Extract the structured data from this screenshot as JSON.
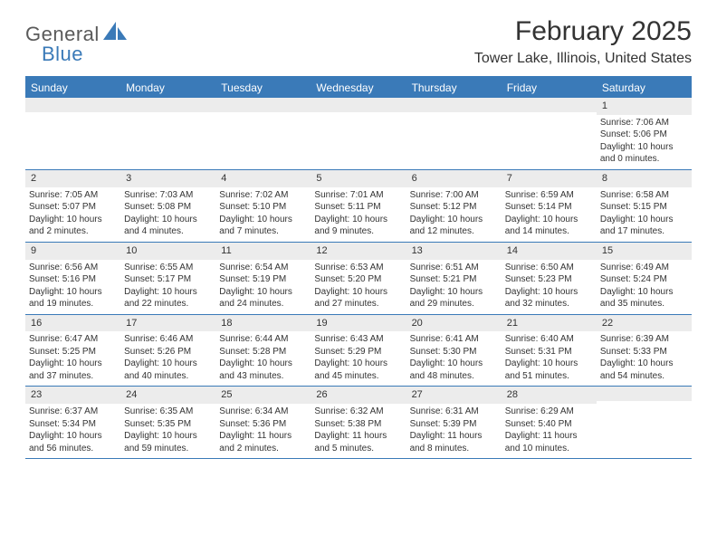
{
  "brand": {
    "word1": "General",
    "word2": "Blue",
    "accent_color": "#3a7ab8",
    "text_color": "#5a5a5a"
  },
  "title": "February 2025",
  "location": "Tower Lake, Illinois, United States",
  "header_bg": "#3a7ab8",
  "daynum_bg": "#ececec",
  "weekdays": [
    "Sunday",
    "Monday",
    "Tuesday",
    "Wednesday",
    "Thursday",
    "Friday",
    "Saturday"
  ],
  "weeks": [
    [
      {
        "n": "",
        "lines": []
      },
      {
        "n": "",
        "lines": []
      },
      {
        "n": "",
        "lines": []
      },
      {
        "n": "",
        "lines": []
      },
      {
        "n": "",
        "lines": []
      },
      {
        "n": "",
        "lines": []
      },
      {
        "n": "1",
        "lines": [
          "Sunrise: 7:06 AM",
          "Sunset: 5:06 PM",
          "Daylight: 10 hours and 0 minutes."
        ]
      }
    ],
    [
      {
        "n": "2",
        "lines": [
          "Sunrise: 7:05 AM",
          "Sunset: 5:07 PM",
          "Daylight: 10 hours and 2 minutes."
        ]
      },
      {
        "n": "3",
        "lines": [
          "Sunrise: 7:03 AM",
          "Sunset: 5:08 PM",
          "Daylight: 10 hours and 4 minutes."
        ]
      },
      {
        "n": "4",
        "lines": [
          "Sunrise: 7:02 AM",
          "Sunset: 5:10 PM",
          "Daylight: 10 hours and 7 minutes."
        ]
      },
      {
        "n": "5",
        "lines": [
          "Sunrise: 7:01 AM",
          "Sunset: 5:11 PM",
          "Daylight: 10 hours and 9 minutes."
        ]
      },
      {
        "n": "6",
        "lines": [
          "Sunrise: 7:00 AM",
          "Sunset: 5:12 PM",
          "Daylight: 10 hours and 12 minutes."
        ]
      },
      {
        "n": "7",
        "lines": [
          "Sunrise: 6:59 AM",
          "Sunset: 5:14 PM",
          "Daylight: 10 hours and 14 minutes."
        ]
      },
      {
        "n": "8",
        "lines": [
          "Sunrise: 6:58 AM",
          "Sunset: 5:15 PM",
          "Daylight: 10 hours and 17 minutes."
        ]
      }
    ],
    [
      {
        "n": "9",
        "lines": [
          "Sunrise: 6:56 AM",
          "Sunset: 5:16 PM",
          "Daylight: 10 hours and 19 minutes."
        ]
      },
      {
        "n": "10",
        "lines": [
          "Sunrise: 6:55 AM",
          "Sunset: 5:17 PM",
          "Daylight: 10 hours and 22 minutes."
        ]
      },
      {
        "n": "11",
        "lines": [
          "Sunrise: 6:54 AM",
          "Sunset: 5:19 PM",
          "Daylight: 10 hours and 24 minutes."
        ]
      },
      {
        "n": "12",
        "lines": [
          "Sunrise: 6:53 AM",
          "Sunset: 5:20 PM",
          "Daylight: 10 hours and 27 minutes."
        ]
      },
      {
        "n": "13",
        "lines": [
          "Sunrise: 6:51 AM",
          "Sunset: 5:21 PM",
          "Daylight: 10 hours and 29 minutes."
        ]
      },
      {
        "n": "14",
        "lines": [
          "Sunrise: 6:50 AM",
          "Sunset: 5:23 PM",
          "Daylight: 10 hours and 32 minutes."
        ]
      },
      {
        "n": "15",
        "lines": [
          "Sunrise: 6:49 AM",
          "Sunset: 5:24 PM",
          "Daylight: 10 hours and 35 minutes."
        ]
      }
    ],
    [
      {
        "n": "16",
        "lines": [
          "Sunrise: 6:47 AM",
          "Sunset: 5:25 PM",
          "Daylight: 10 hours and 37 minutes."
        ]
      },
      {
        "n": "17",
        "lines": [
          "Sunrise: 6:46 AM",
          "Sunset: 5:26 PM",
          "Daylight: 10 hours and 40 minutes."
        ]
      },
      {
        "n": "18",
        "lines": [
          "Sunrise: 6:44 AM",
          "Sunset: 5:28 PM",
          "Daylight: 10 hours and 43 minutes."
        ]
      },
      {
        "n": "19",
        "lines": [
          "Sunrise: 6:43 AM",
          "Sunset: 5:29 PM",
          "Daylight: 10 hours and 45 minutes."
        ]
      },
      {
        "n": "20",
        "lines": [
          "Sunrise: 6:41 AM",
          "Sunset: 5:30 PM",
          "Daylight: 10 hours and 48 minutes."
        ]
      },
      {
        "n": "21",
        "lines": [
          "Sunrise: 6:40 AM",
          "Sunset: 5:31 PM",
          "Daylight: 10 hours and 51 minutes."
        ]
      },
      {
        "n": "22",
        "lines": [
          "Sunrise: 6:39 AM",
          "Sunset: 5:33 PM",
          "Daylight: 10 hours and 54 minutes."
        ]
      }
    ],
    [
      {
        "n": "23",
        "lines": [
          "Sunrise: 6:37 AM",
          "Sunset: 5:34 PM",
          "Daylight: 10 hours and 56 minutes."
        ]
      },
      {
        "n": "24",
        "lines": [
          "Sunrise: 6:35 AM",
          "Sunset: 5:35 PM",
          "Daylight: 10 hours and 59 minutes."
        ]
      },
      {
        "n": "25",
        "lines": [
          "Sunrise: 6:34 AM",
          "Sunset: 5:36 PM",
          "Daylight: 11 hours and 2 minutes."
        ]
      },
      {
        "n": "26",
        "lines": [
          "Sunrise: 6:32 AM",
          "Sunset: 5:38 PM",
          "Daylight: 11 hours and 5 minutes."
        ]
      },
      {
        "n": "27",
        "lines": [
          "Sunrise: 6:31 AM",
          "Sunset: 5:39 PM",
          "Daylight: 11 hours and 8 minutes."
        ]
      },
      {
        "n": "28",
        "lines": [
          "Sunrise: 6:29 AM",
          "Sunset: 5:40 PM",
          "Daylight: 11 hours and 10 minutes."
        ]
      },
      {
        "n": "",
        "lines": []
      }
    ]
  ]
}
